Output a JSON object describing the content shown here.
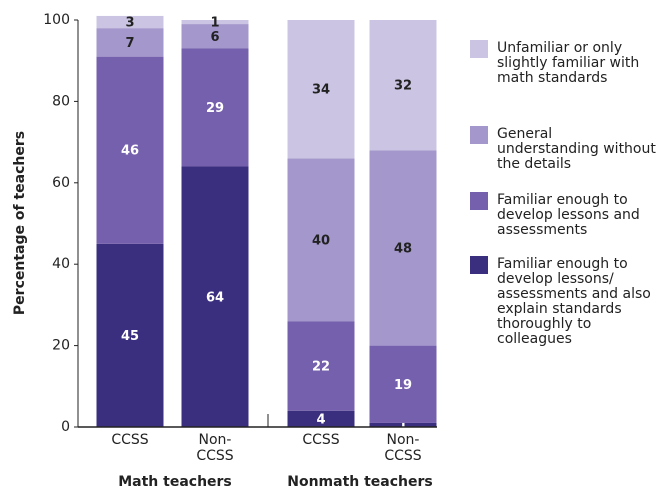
{
  "chart_data": {
    "type": "bar",
    "stacked": true,
    "ylabel": "Percentage of teachers",
    "categories": [
      "CCSS",
      "Non-CCSS",
      "CCSS",
      "Non-CCSS"
    ],
    "groups": [
      "Math teachers",
      "Nonmath teachers"
    ],
    "ylim": [
      0,
      100
    ],
    "yticks": [
      0,
      20,
      40,
      60,
      80,
      100
    ],
    "series": [
      {
        "name": "Familiar enough to develop lessons/ assessments and also explain standards thoroughly to colleagues",
        "color": "#3a2f7f",
        "values": [
          45,
          64,
          4,
          1
        ]
      },
      {
        "name": "Familiar enough to develop lessons and assessments",
        "color": "#7560ad",
        "values": [
          46,
          29,
          22,
          19
        ]
      },
      {
        "name": "General understanding without the details",
        "color": "#a497cb",
        "values": [
          7,
          6,
          40,
          48
        ]
      },
      {
        "name": "Unfamiliar or only slightly familiar with math standards",
        "color": "#cbc5e3",
        "values": [
          3,
          1,
          34,
          32
        ]
      }
    ]
  }
}
